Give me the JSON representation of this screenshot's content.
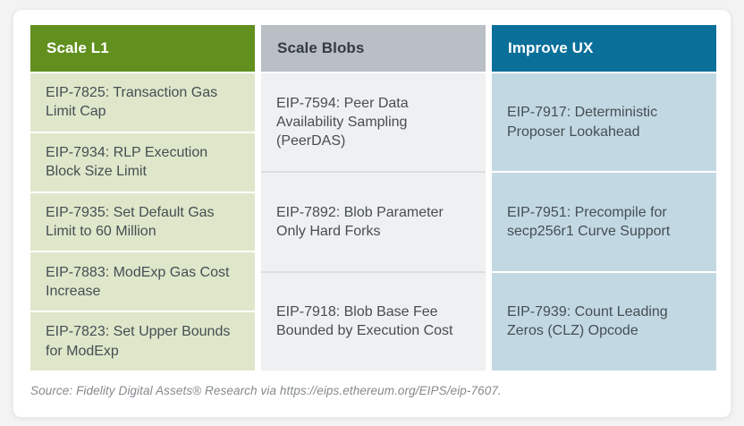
{
  "page": {
    "background_color": "#f3f3f4",
    "card_color": "#ffffff"
  },
  "chart_data": {
    "type": "table",
    "categories": [
      "Scale L1",
      "Scale Blobs",
      "Improve UX"
    ],
    "columns": [
      {
        "header": "Scale L1",
        "header_bg": "#61901e",
        "header_text_color": "#ffffff",
        "cell_bg": "#dfe7cb",
        "divider_color": "#ffffff",
        "rows": [
          "EIP-7825: Transaction Gas Limit Cap",
          "EIP-7934: RLP Execution Block Size Limit",
          "EIP-7935: Set Default Gas Limit to 60 Million",
          "EIP-7883: ModExp Gas Cost Increase",
          "EIP-7823: Set Upper Bounds for ModExp"
        ]
      },
      {
        "header": "Scale Blobs",
        "header_bg": "#b9bfc5",
        "header_text_color": "#333b42",
        "cell_bg": "#eff0f1",
        "divider_color": "#dcdee0",
        "rows": [
          "EIP-7594: Peer Data Availability Sampling (PeerDAS)",
          "EIP-7892: Blob Parameter Only Hard Forks",
          "EIP-7918: Blob Base Fee Bounded by Execution Cost"
        ]
      },
      {
        "header": "Improve UX",
        "header_bg": "#0a6f99",
        "header_text_color": "#ffffff",
        "cell_bg": "#c2d9e4",
        "divider_color": "#ffffff",
        "rows": [
          "EIP-7917: Deterministic Proposer Lookahead",
          "EIP-7951: Precompile for secp256r1 Curve Support",
          "EIP-7939: Count Leading Zeros (CLZ) Opcode"
        ]
      }
    ],
    "body_text_color": "#454e52",
    "source": "Source: Fidelity Digital Assets® Research via https://eips.ethereum.org/EIPS/eip-7607."
  }
}
